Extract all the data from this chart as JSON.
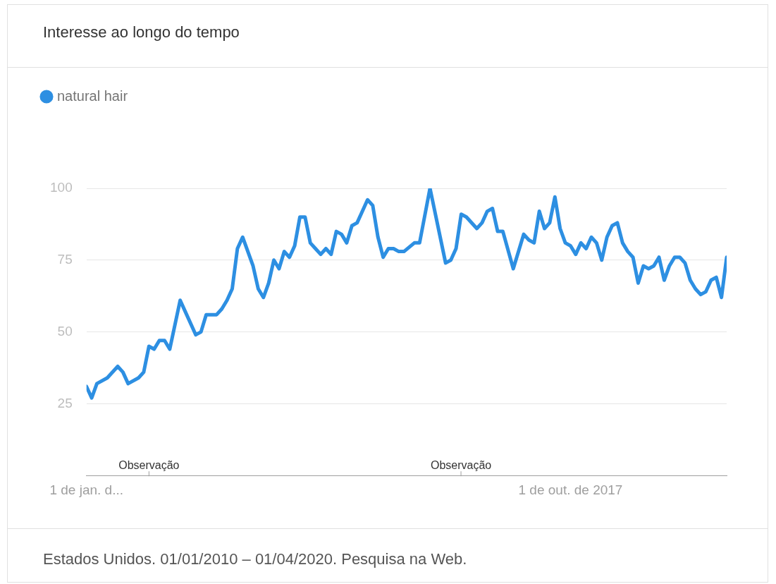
{
  "chart_data": {
    "type": "line",
    "title": "Interesse ao longo do tempo",
    "annotations": [
      "Observação",
      "Observação",
      "Estados Unidos. 01/01/2010 – 01/04/2020. Pesquisa na Web."
    ],
    "xlim": [
      "2010-01",
      "2020-04"
    ],
    "xticks": [
      {
        "value": "2010-01",
        "label": "1 de jan. d..."
      },
      {
        "value": "2017-10",
        "label": "1 de out. de 2017"
      }
    ],
    "ylim": [
      0,
      100
    ],
    "yticks": [
      25,
      50,
      75,
      100
    ],
    "grid": "y",
    "legend": "top left",
    "marker": "none",
    "line_style": "solid",
    "series": [
      {
        "name": "natural hair",
        "color": "#2d8fe2",
        "x": [
          "2010-01",
          "2010-02",
          "2010-03",
          "2010-05",
          "2010-07",
          "2010-08",
          "2010-09",
          "2010-11",
          "2010-12",
          "2011-01",
          "2011-02",
          "2011-03",
          "2011-04",
          "2011-05",
          "2011-07",
          "2011-08",
          "2011-10",
          "2011-11",
          "2011-12",
          "2012-02",
          "2012-03",
          "2012-04",
          "2012-05",
          "2012-06",
          "2012-07",
          "2012-09",
          "2012-10",
          "2012-11",
          "2012-12",
          "2013-01",
          "2013-02",
          "2013-03",
          "2013-04",
          "2013-05",
          "2013-06",
          "2013-07",
          "2013-08",
          "2013-09",
          "2013-10",
          "2013-11",
          "2013-12",
          "2014-01",
          "2014-02",
          "2014-03",
          "2014-04",
          "2014-05",
          "2014-07",
          "2014-08",
          "2014-09",
          "2014-10",
          "2014-11",
          "2014-12",
          "2015-01",
          "2015-02",
          "2015-04",
          "2015-05",
          "2015-07",
          "2015-10",
          "2015-11",
          "2015-12",
          "2016-01",
          "2016-02",
          "2016-04",
          "2016-05",
          "2016-06",
          "2016-07",
          "2016-08",
          "2016-09",
          "2016-11",
          "2017-01",
          "2017-02",
          "2017-03",
          "2017-04",
          "2017-05",
          "2017-06",
          "2017-07",
          "2017-08",
          "2017-09",
          "2017-10",
          "2017-11",
          "2017-12",
          "2018-01",
          "2018-02",
          "2018-03",
          "2018-04",
          "2018-05",
          "2018-06",
          "2018-07",
          "2018-08",
          "2018-09",
          "2018-10",
          "2018-11",
          "2018-12",
          "2019-01",
          "2019-02",
          "2019-03",
          "2019-04",
          "2019-05",
          "2019-06",
          "2019-07",
          "2019-08",
          "2019-09",
          "2019-10",
          "2019-11",
          "2019-12",
          "2020-01",
          "2020-02",
          "2020-03",
          "2020-04"
        ],
        "values": [
          31,
          27,
          32,
          34,
          38,
          36,
          32,
          34,
          36,
          45,
          44,
          47,
          47,
          44,
          61,
          57,
          49,
          50,
          56,
          56,
          58,
          61,
          65,
          79,
          83,
          73,
          65,
          62,
          67,
          75,
          72,
          78,
          76,
          80,
          90,
          90,
          81,
          79,
          77,
          79,
          77,
          85,
          84,
          81,
          87,
          88,
          96,
          94,
          83,
          76,
          79,
          79,
          78,
          78,
          81,
          81,
          100,
          74,
          75,
          79,
          91,
          90,
          86,
          88,
          92,
          93,
          85,
          85,
          72,
          84,
          82,
          81,
          92,
          86,
          88,
          97,
          86,
          81,
          80,
          77,
          81,
          79,
          83,
          81,
          75,
          83,
          87,
          88,
          81,
          78,
          76,
          67,
          73,
          72,
          73,
          76,
          68,
          73,
          76,
          76,
          74,
          68,
          65,
          63,
          64,
          68,
          69,
          62,
          76
        ]
      }
    ]
  }
}
